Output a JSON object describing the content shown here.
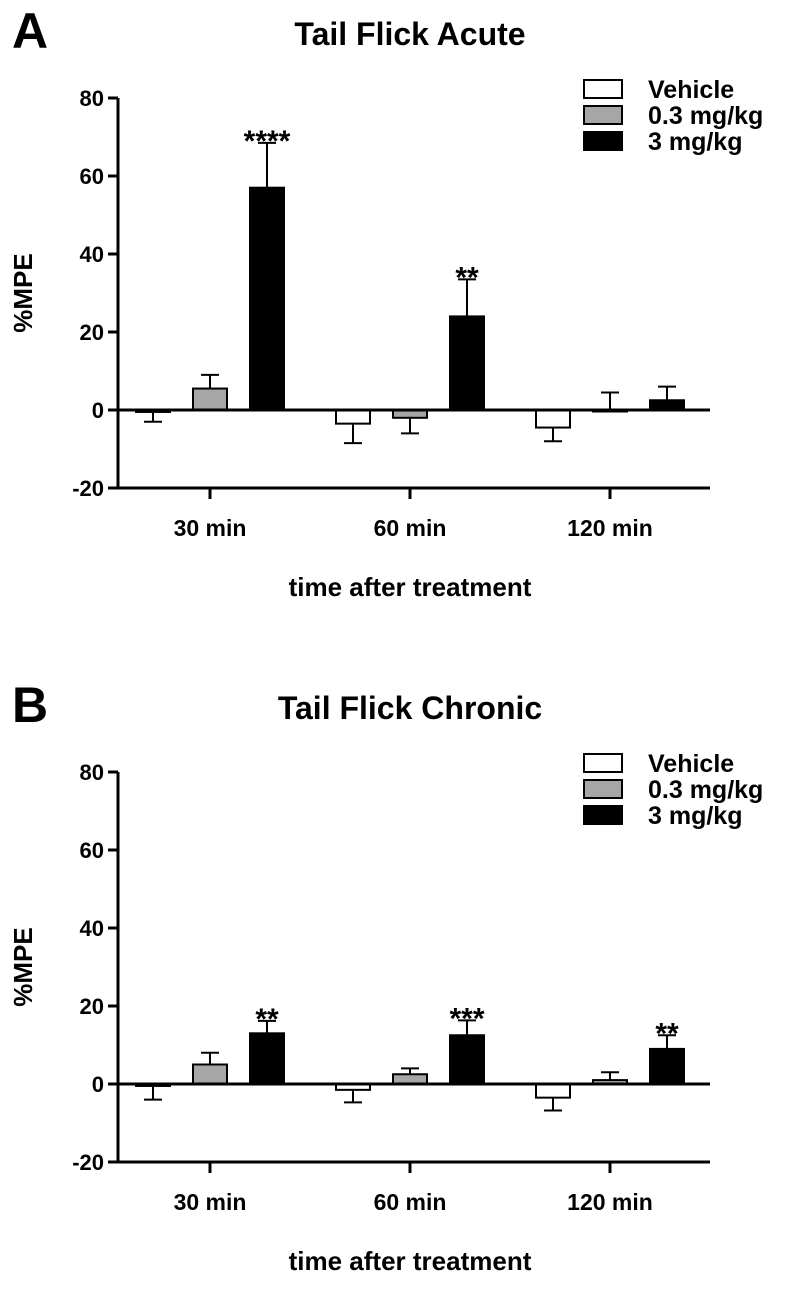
{
  "chart_data": [
    {
      "panel": "A",
      "type": "bar",
      "title": "Tail Flick Acute",
      "xlabel": "time after treatment",
      "ylabel": "%MPE",
      "ylim": [
        -20,
        80
      ],
      "yticks": [
        "-20",
        "0",
        "20",
        "40",
        "60",
        "80"
      ],
      "categories": [
        "30 min",
        "60 min",
        "120 min"
      ],
      "legend_position": "top-right",
      "series": [
        {
          "name": "Vehicle",
          "color": "#ffffff",
          "values": [
            -0.5,
            -3.5,
            -4.5
          ],
          "errors": [
            2.5,
            5,
            3.5
          ],
          "annotations": [
            "",
            "",
            ""
          ]
        },
        {
          "name": "0.3 mg/kg",
          "color": "#a6a6a6",
          "values": [
            5.5,
            -2,
            0
          ],
          "errors": [
            3.5,
            4,
            4.5
          ],
          "annotations": [
            "",
            "",
            ""
          ]
        },
        {
          "name": "3 mg/kg",
          "color": "#000000",
          "values": [
            57,
            24,
            2.5
          ],
          "errors": [
            11.5,
            9.5,
            3.5
          ],
          "annotations": [
            "****",
            "**",
            ""
          ]
        }
      ]
    },
    {
      "panel": "B",
      "type": "bar",
      "title": "Tail Flick Chronic",
      "xlabel": "time after treatment",
      "ylabel": "%MPE",
      "ylim": [
        -20,
        80
      ],
      "yticks": [
        "-20",
        "0",
        "20",
        "40",
        "60",
        "80"
      ],
      "categories": [
        "30 min",
        "60 min",
        "120 min"
      ],
      "legend_position": "top-right",
      "series": [
        {
          "name": "Vehicle",
          "color": "#ffffff",
          "values": [
            -0.5,
            -1.5,
            -3.5
          ],
          "errors": [
            3.5,
            3.2,
            3.3
          ],
          "annotations": [
            "",
            "",
            ""
          ]
        },
        {
          "name": "0.3 mg/kg",
          "color": "#a6a6a6",
          "values": [
            5,
            2.5,
            1
          ],
          "errors": [
            3,
            1.5,
            2
          ],
          "annotations": [
            "",
            "",
            ""
          ]
        },
        {
          "name": "3 mg/kg",
          "color": "#000000",
          "values": [
            13,
            12.5,
            9
          ],
          "errors": [
            3.2,
            3.8,
            3.5
          ],
          "annotations": [
            "**",
            "***",
            "**"
          ]
        }
      ]
    }
  ]
}
